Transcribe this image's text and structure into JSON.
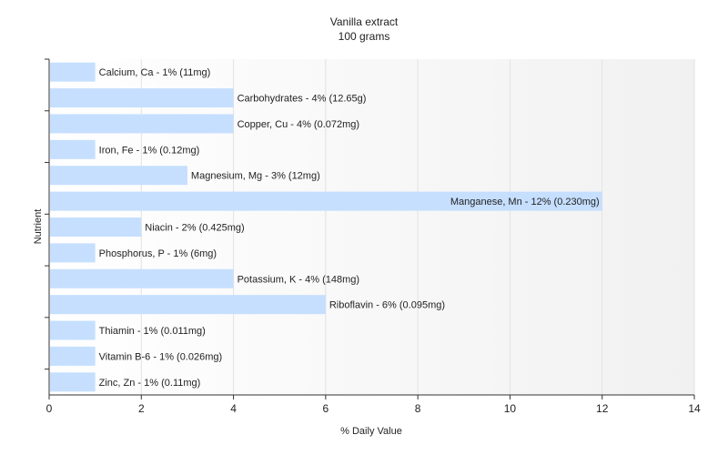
{
  "chart_data": {
    "type": "bar",
    "orientation": "horizontal",
    "title": "Vanilla extract",
    "subtitle": "100 grams",
    "xlabel": "% Daily Value",
    "ylabel": "Nutrient",
    "xlim": [
      0,
      14
    ],
    "xticks": [
      0,
      2,
      4,
      6,
      8,
      10,
      12,
      14
    ],
    "grid": true,
    "bar_color": "#c6dfff",
    "categories": [
      "Calcium, Ca",
      "Carbohydrates",
      "Copper, Cu",
      "Iron, Fe",
      "Magnesium, Mg",
      "Manganese, Mn",
      "Niacin",
      "Phosphorus, P",
      "Potassium, K",
      "Riboflavin",
      "Thiamin",
      "Vitamin B-6",
      "Zinc, Zn"
    ],
    "values": [
      1,
      4,
      4,
      1,
      3,
      12,
      2,
      1,
      4,
      6,
      1,
      1,
      1
    ],
    "labels": [
      "Calcium, Ca - 1% (11mg)",
      "Carbohydrates - 4% (12.65g)",
      "Copper, Cu - 4% (0.072mg)",
      "Iron, Fe - 1% (0.12mg)",
      "Magnesium, Mg - 3% (12mg)",
      "Manganese, Mn - 12% (0.230mg)",
      "Niacin - 2% (0.425mg)",
      "Phosphorus, P - 1% (6mg)",
      "Potassium, K - 4% (148mg)",
      "Riboflavin - 6% (0.095mg)",
      "Thiamin - 1% (0.011mg)",
      "Vitamin B-6 - 1% (0.026mg)",
      "Zinc, Zn - 1% (0.11mg)"
    ]
  }
}
